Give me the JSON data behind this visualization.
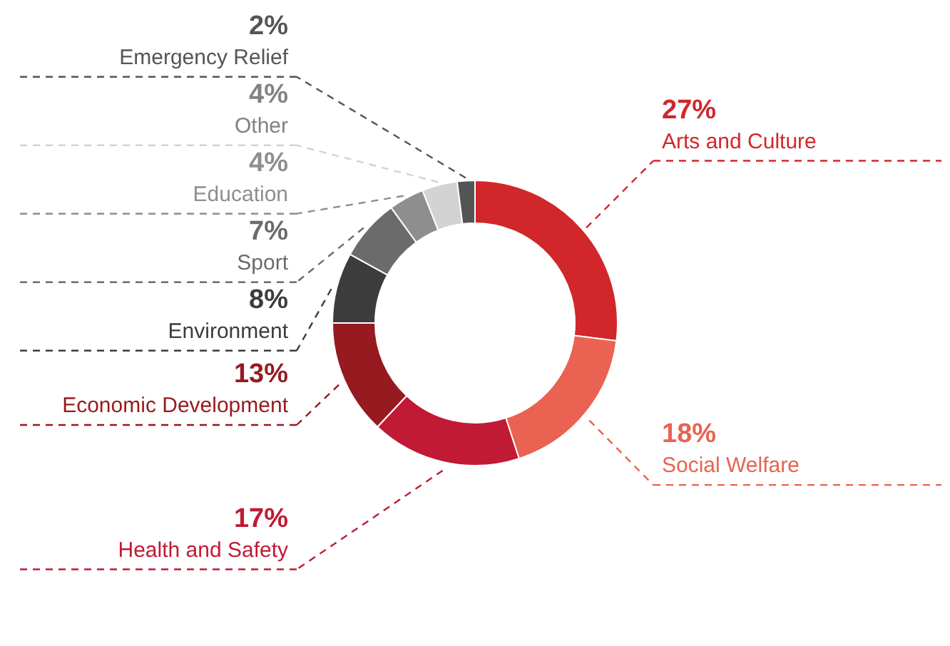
{
  "chart_data": {
    "type": "donut",
    "categories": [
      "Arts and Culture",
      "Social Welfare",
      "Health and Safety",
      "Economic Development",
      "Environment",
      "Sport",
      "Education",
      "Other",
      "Emergency Relief"
    ],
    "values": [
      27,
      18,
      17,
      13,
      8,
      7,
      4,
      4,
      2
    ],
    "value_labels": [
      "27%",
      "18%",
      "17%",
      "13%",
      "8%",
      "7%",
      "4%",
      "4%",
      "2%"
    ],
    "colors": [
      "#d1272b",
      "#ea6251",
      "#c01a35",
      "#961a1f",
      "#3c3c3c",
      "#6b6b6b",
      "#8e8e8e",
      "#d3d3d3",
      "#555555"
    ]
  }
}
